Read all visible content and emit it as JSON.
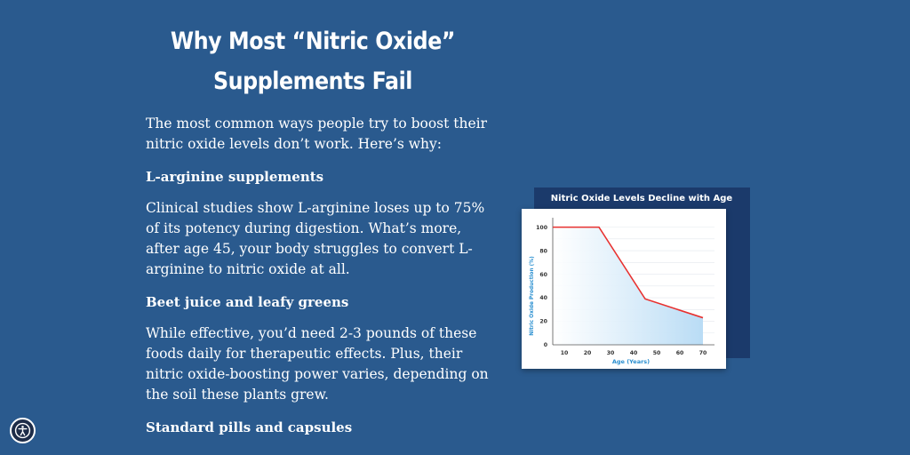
{
  "headline": {
    "line1": "Why Most “Nitric Oxide”",
    "line2": "Supplements Fail"
  },
  "article": {
    "intro": "The most common ways people try to boost their nitric oxide levels don’t work. Here’s why:",
    "sections": [
      {
        "heading": "L-arginine supplements",
        "body": "Clinical studies show L-arginine loses up to 75% of its potency during digestion. What’s more, after age 45, your body struggles to convert L-arginine to nitric oxide at all."
      },
      {
        "heading": "Beet juice and leafy greens",
        "body": "While effective, you’d need 2-3 pounds of these foods daily for therapeutic effects. Plus, their nitric oxide-boosting power varies, depending on the soil these plants grew."
      },
      {
        "heading": "Standard pills and capsules",
        "body": ""
      }
    ]
  },
  "accessibility": {
    "icon": "accessibility-icon"
  },
  "colors": {
    "page_background": "#2a5a8e",
    "chart_backdrop": "#1b3a6b",
    "chart_line": "#e8312f",
    "chart_fill": "#b9dcf5",
    "chart_axis_label": "#2a8fd0"
  },
  "chart_data": {
    "type": "area",
    "title": "Nitric Oxide Levels Decline with Age",
    "xlabel": "Age (Years)",
    "ylabel": "Nitric Oxide Production (%)",
    "x_ticks": [
      "10",
      "20",
      "30",
      "40",
      "50",
      "60",
      "70"
    ],
    "y_ticks": [
      "0",
      "20",
      "40",
      "60",
      "80",
      "100"
    ],
    "xlim": [
      5,
      75
    ],
    "ylim": [
      0,
      105
    ],
    "grid": true,
    "series": [
      {
        "x": [
          5,
          25,
          45,
          70
        ],
        "y": [
          100,
          100,
          39,
          23
        ]
      }
    ]
  }
}
